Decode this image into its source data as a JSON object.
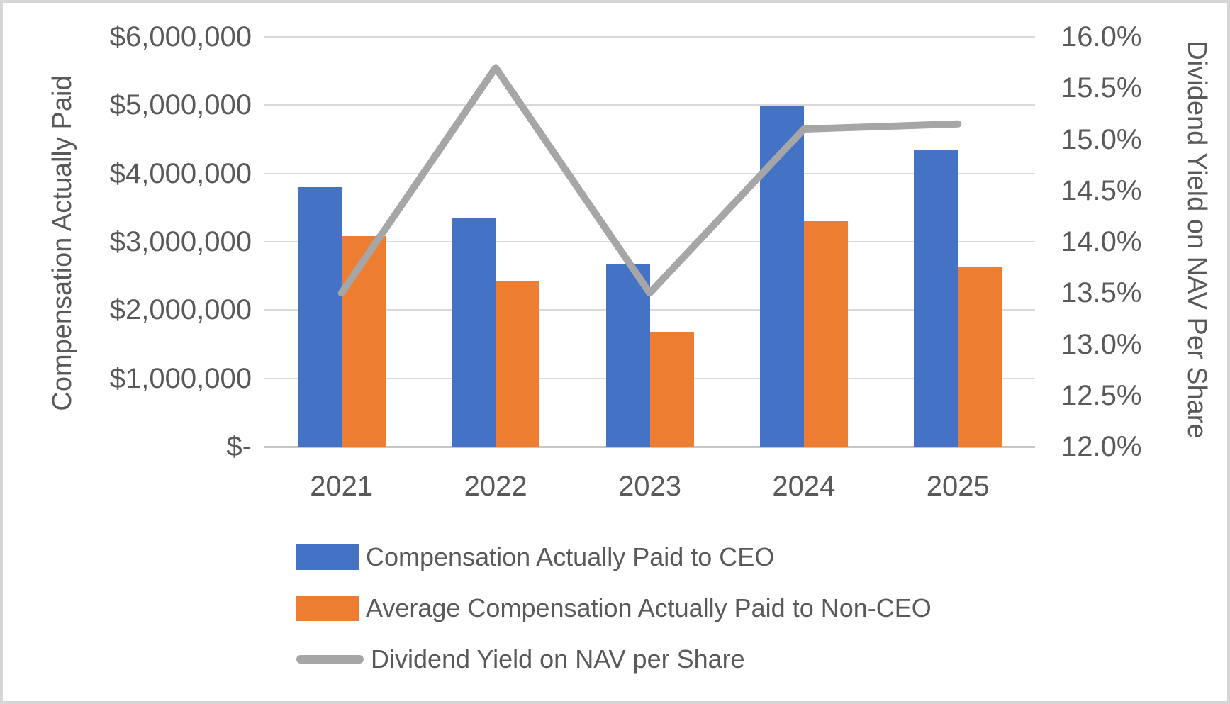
{
  "chart_data": {
    "type": "combo-bar-line",
    "categories": [
      "2021",
      "2022",
      "2023",
      "2024",
      "2025"
    ],
    "series": [
      {
        "name": "Compensation Actually Paid to CEO",
        "type": "bar",
        "axis": "left",
        "color": "#4472C4",
        "values": [
          3800000,
          3350000,
          2680000,
          4980000,
          4350000
        ]
      },
      {
        "name": "Average Compensation Actually Paid to Non-CEO",
        "type": "bar",
        "axis": "left",
        "color": "#ED7D31",
        "values": [
          3080000,
          2430000,
          1680000,
          3300000,
          2640000
        ]
      },
      {
        "name": "Dividend Yield on NAV per Share",
        "type": "line",
        "axis": "right",
        "color": "#A6A6A6",
        "values": [
          13.5,
          15.7,
          13.5,
          15.1,
          15.15
        ]
      }
    ],
    "left_axis": {
      "title": "Compensation Actually Paid",
      "min": 0,
      "max": 6000000,
      "tick_labels": [
        "$6,000,000",
        "$5,000,000",
        "$4,000,000",
        "$3,000,000",
        "$2,000,000",
        "$1,000,000",
        "$-"
      ]
    },
    "right_axis": {
      "title": "Dividend Yield on NAV Per Share",
      "min": 12.0,
      "max": 16.0,
      "tick_labels": [
        "16.0%",
        "15.5%",
        "15.0%",
        "14.5%",
        "14.0%",
        "13.5%",
        "13.0%",
        "12.5%",
        "12.0%"
      ]
    },
    "grid": true,
    "legend_position": "bottom-left"
  },
  "colors": {
    "bar_ceo": "#4472C4",
    "bar_nonceo": "#ED7D31",
    "line_yield": "#A6A6A6",
    "gridline": "#D9D9D9",
    "axis_line": "#C6C6C6",
    "text": "#595959",
    "frame_border": "#D6D6D6",
    "background": "#FFFFFF"
  }
}
